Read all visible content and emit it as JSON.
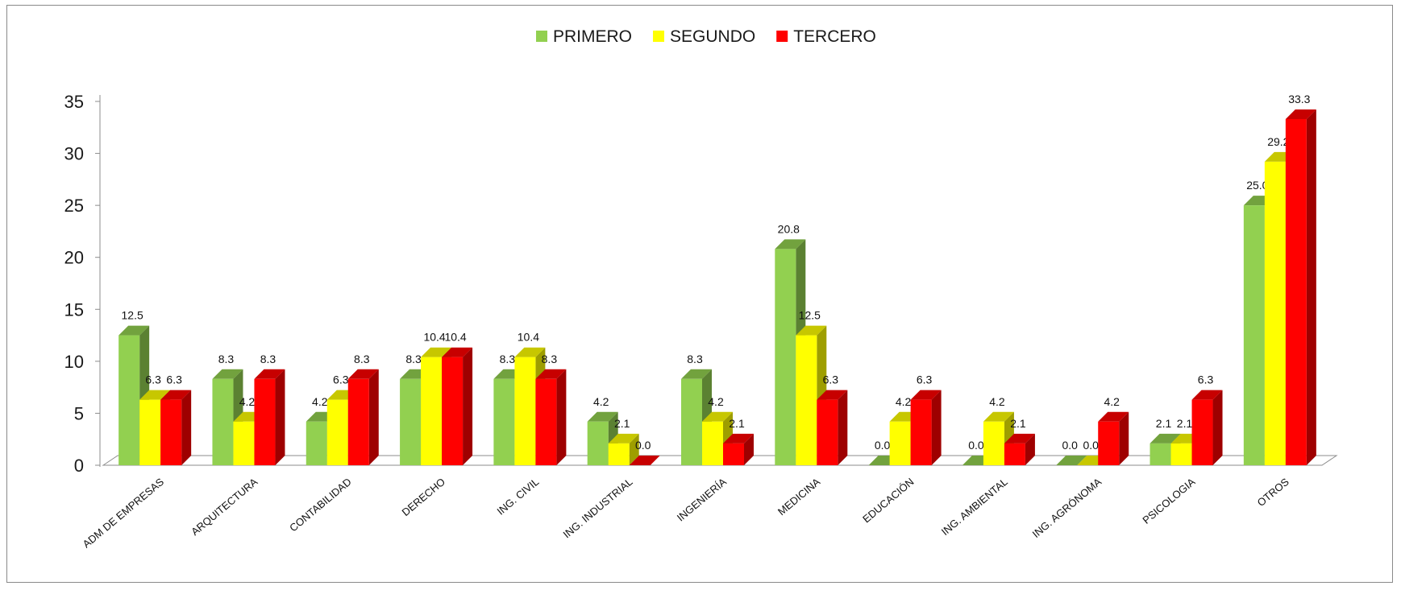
{
  "chart_data": {
    "type": "bar",
    "style": "3d-clustered",
    "categories": [
      "ADM DE EMPRESAS",
      "ARQUITECTURA",
      "CONTABILIDAD",
      "DERECHO",
      "ING. CIVIL",
      "ING. INDUSTRIAL",
      "INGENIERÍA",
      "MEDICINA",
      "EDUCACIÓN",
      "ING. AMBIENTAL",
      "ING. AGRÓNOMA",
      "PSICOLOGIA",
      "OTROS"
    ],
    "series": [
      {
        "name": "PRIMERO",
        "color": "#92d050",
        "values": [
          12.5,
          8.3,
          4.2,
          8.3,
          8.3,
          4.2,
          8.3,
          20.8,
          0.0,
          0.0,
          0.0,
          2.1,
          25.0
        ]
      },
      {
        "name": "SEGUNDO",
        "color": "#ffff00",
        "values": [
          6.3,
          4.2,
          6.3,
          10.4,
          10.4,
          2.1,
          4.2,
          12.5,
          4.2,
          4.2,
          0.0,
          2.1,
          29.2
        ]
      },
      {
        "name": "TERCERO",
        "color": "#ff0000",
        "values": [
          6.3,
          8.3,
          8.3,
          10.4,
          8.3,
          0.0,
          2.1,
          6.3,
          6.3,
          2.1,
          4.2,
          6.3,
          33.3
        ]
      }
    ],
    "data_labels": [
      [
        "12.5",
        "6.3",
        "6.3"
      ],
      [
        "8.3",
        "4.2",
        "8.3"
      ],
      [
        "4.2",
        "6.3",
        "8.3"
      ],
      [
        "8.3",
        "10.4",
        "10.4"
      ],
      [
        "8.3",
        "10.4",
        "8.3"
      ],
      [
        "4.2",
        "2.1",
        "0.0"
      ],
      [
        "8.3",
        "4.2",
        "2.1"
      ],
      [
        "20.8",
        "12.5",
        "6.3"
      ],
      [
        "0.0",
        "4.2",
        "6.3"
      ],
      [
        "0.0",
        "4.2",
        "2.1"
      ],
      [
        "0.0",
        "0.0",
        "4.2"
      ],
      [
        "2.1",
        "2.1",
        "6.3"
      ],
      [
        "25.0",
        "29.2",
        "33.3"
      ]
    ],
    "ylim": [
      0,
      35
    ],
    "yticks": [
      "0",
      "5",
      "10",
      "15",
      "20",
      "25",
      "30",
      "35"
    ],
    "title": "",
    "xlabel": "",
    "ylabel": "",
    "legend_position": "top-center",
    "grid": false
  }
}
